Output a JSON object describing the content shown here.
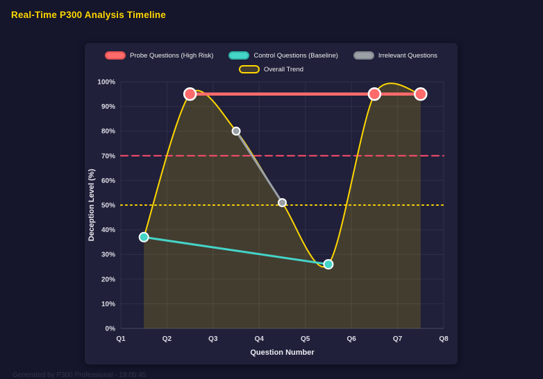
{
  "page": {
    "title": "Real-Time P300 Analysis Timeline",
    "footer": "Generated by P300 Professional - 19:05:45"
  },
  "chart_data": {
    "type": "line",
    "xlabel": "Question Number",
    "ylabel": "Deception Level (%)",
    "xlim": [
      1,
      8
    ],
    "ylim": [
      0,
      100
    ],
    "grid": true,
    "legend_position": "top",
    "x_tick_values": [
      1,
      2,
      3,
      4,
      5,
      6,
      7,
      8
    ],
    "x_ticks": [
      "Q1",
      "Q2",
      "Q3",
      "Q4",
      "Q5",
      "Q6",
      "Q7",
      "Q8"
    ],
    "y_tick_values": [
      0,
      10,
      20,
      30,
      40,
      50,
      60,
      70,
      80,
      90,
      100
    ],
    "y_ticks": [
      "0%",
      "10%",
      "20%",
      "30%",
      "40%",
      "50%",
      "60%",
      "70%",
      "80%",
      "90%",
      "100%"
    ],
    "legend_rows": [
      [
        0,
        1,
        2
      ],
      [
        3
      ]
    ],
    "series": [
      {
        "name": "Probe Questions (High Risk)",
        "color": "#ff6b6b",
        "swatch_border": "#e05252",
        "points": [
          [
            2.5,
            95
          ],
          [
            6.5,
            95
          ],
          [
            7.5,
            95
          ]
        ],
        "line_width": 4.5,
        "marker_radius": 8.5,
        "marker_stroke": "#ffffff",
        "smooth": false,
        "area": false
      },
      {
        "name": "Control Questions (Baseline)",
        "color": "#45d4c8",
        "swatch_border": "#2fb3a8",
        "points": [
          [
            1.5,
            37
          ],
          [
            5.5,
            26
          ]
        ],
        "line_width": 3,
        "marker_radius": 6.5,
        "marker_stroke": "#ffffff",
        "smooth": false,
        "area": false
      },
      {
        "name": "Irrelevant Questions",
        "color": "#9aa0a6",
        "swatch_border": "#7f868c",
        "points": [
          [
            3.5,
            80
          ],
          [
            4.5,
            51
          ]
        ],
        "line_width": 3,
        "marker_radius": 5.5,
        "marker_stroke": "#ffffff",
        "smooth": false,
        "area": false
      },
      {
        "name": "Overall Trend",
        "color": "#ffd700",
        "swatch_fill": "rgba(255,215,0,0.15)",
        "swatch_border": "#ffd700",
        "points": [
          [
            1.5,
            37
          ],
          [
            2.5,
            95
          ],
          [
            3.5,
            80
          ],
          [
            4.5,
            51
          ],
          [
            5.5,
            26
          ],
          [
            6.5,
            95
          ],
          [
            7.5,
            95
          ]
        ],
        "line_width": 2,
        "marker_radius": 0,
        "smooth": true,
        "area": true,
        "area_fill": "rgba(255,215,0,0.16)"
      }
    ],
    "thresholds": [
      {
        "value": 70,
        "color": "#ff4d6d",
        "style": "dashed"
      },
      {
        "value": 50,
        "color": "#ffd700",
        "style": "dotted"
      }
    ]
  }
}
